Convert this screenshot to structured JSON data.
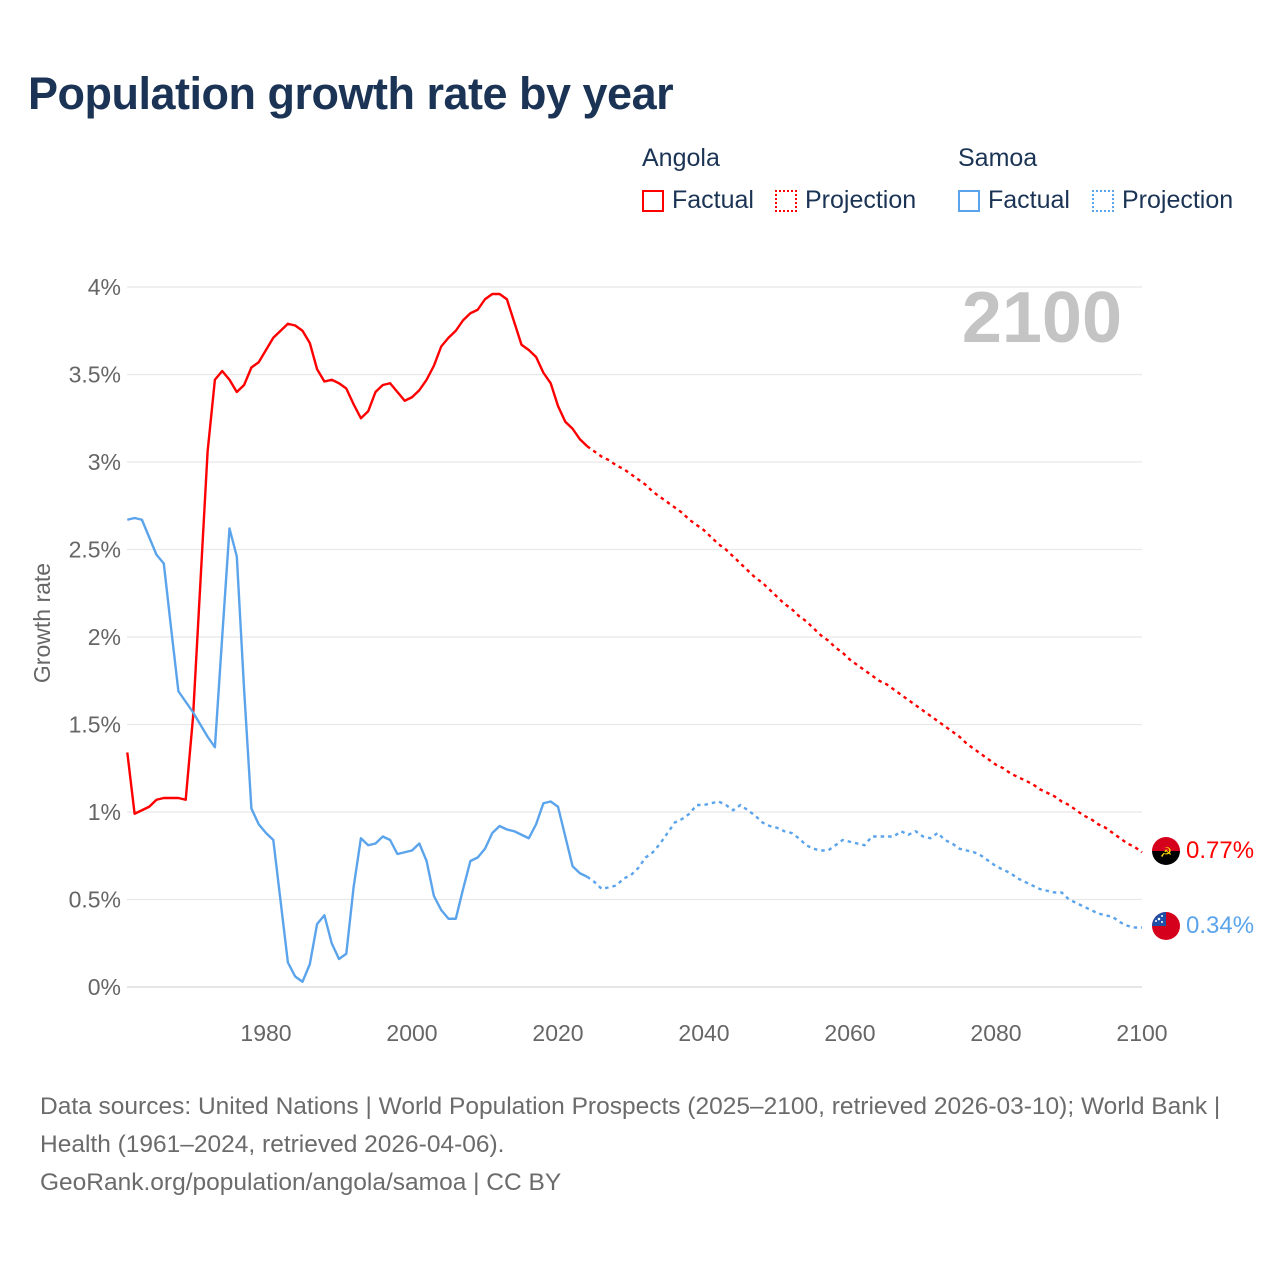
{
  "title": "Population growth rate by year",
  "legend": {
    "groups": [
      {
        "name": "Angola",
        "color": "#ff0000",
        "factual": "Factual",
        "projection": "Projection"
      },
      {
        "name": "Samoa",
        "color": "#5ba4ec",
        "factual": "Factual",
        "projection": "Projection"
      }
    ]
  },
  "year_overlay": "2100",
  "end_labels": {
    "angola": "0.77%",
    "samoa": "0.34%"
  },
  "footer": {
    "sources": "Data sources: United Nations | World Population Prospects (2025–2100, retrieved 2026-03-10); World Bank | Health (1961–2024, retrieved 2026-04-06).",
    "credit": "GeoRank.org/population/angola/samoa | CC BY"
  },
  "chart_data": {
    "type": "line",
    "title": "Population growth rate by year",
    "xlabel": "",
    "ylabel": "Growth rate",
    "xlim": [
      1961,
      2100
    ],
    "ylim": [
      0,
      4
    ],
    "x_ticks": [
      1980,
      2000,
      2020,
      2040,
      2060,
      2080,
      2100
    ],
    "x_tick_labels": [
      "1980",
      "2000",
      "2020",
      "2040",
      "2060",
      "2080",
      "2100"
    ],
    "y_ticks": [
      0,
      0.5,
      1,
      1.5,
      2,
      2.5,
      3,
      3.5,
      4
    ],
    "y_tick_labels": [
      "0%",
      "0.5%",
      "1%",
      "1.5%",
      "2%",
      "2.5%",
      "3%",
      "3.5%",
      "4%"
    ],
    "grid": true,
    "legend_position": "top-right",
    "series": [
      {
        "name": "Angola Factual",
        "country": "Angola",
        "style": "solid",
        "color": "#ff0000",
        "x_start": 1961,
        "values": [
          1.34,
          0.99,
          1.01,
          1.03,
          1.07,
          1.08,
          1.08,
          1.08,
          1.07,
          1.54,
          2.3,
          3.06,
          3.47,
          3.52,
          3.47,
          3.4,
          3.44,
          3.54,
          3.57,
          3.64,
          3.71,
          3.75,
          3.79,
          3.78,
          3.75,
          3.68,
          3.53,
          3.46,
          3.47,
          3.45,
          3.42,
          3.33,
          3.25,
          3.29,
          3.4,
          3.44,
          3.45,
          3.4,
          3.35,
          3.37,
          3.41,
          3.47,
          3.55,
          3.66,
          3.71,
          3.75,
          3.81,
          3.85,
          3.87,
          3.93,
          3.96,
          3.96,
          3.93,
          3.8,
          3.67,
          3.64,
          3.6,
          3.51,
          3.45,
          3.32,
          3.23,
          3.19,
          3.13,
          3.09
        ]
      },
      {
        "name": "Angola Projection",
        "country": "Angola",
        "style": "dotted",
        "color": "#ff0000",
        "x_start": 2025,
        "values": [
          3.06,
          3.03,
          3.01,
          2.98,
          2.96,
          2.93,
          2.9,
          2.87,
          2.83,
          2.8,
          2.77,
          2.74,
          2.71,
          2.67,
          2.64,
          2.61,
          2.57,
          2.53,
          2.5,
          2.46,
          2.42,
          2.38,
          2.34,
          2.31,
          2.27,
          2.23,
          2.19,
          2.16,
          2.12,
          2.09,
          2.05,
          2.01,
          1.98,
          1.94,
          1.91,
          1.87,
          1.84,
          1.81,
          1.78,
          1.75,
          1.73,
          1.7,
          1.67,
          1.64,
          1.61,
          1.58,
          1.55,
          1.52,
          1.49,
          1.46,
          1.43,
          1.39,
          1.36,
          1.33,
          1.3,
          1.27,
          1.25,
          1.22,
          1.2,
          1.18,
          1.16,
          1.13,
          1.11,
          1.09,
          1.06,
          1.04,
          1.01,
          0.98,
          0.96,
          0.93,
          0.91,
          0.88,
          0.85,
          0.82,
          0.8,
          0.77
        ]
      },
      {
        "name": "Samoa Factual",
        "country": "Samoa",
        "style": "solid",
        "color": "#5ba4ec",
        "x_start": 1961,
        "values": [
          2.67,
          2.68,
          2.67,
          2.57,
          2.47,
          2.42,
          2.05,
          1.69,
          1.63,
          1.57,
          1.5,
          1.43,
          1.37,
          2.0,
          2.62,
          2.46,
          1.7,
          1.02,
          0.93,
          0.88,
          0.84,
          0.49,
          0.14,
          0.06,
          0.03,
          0.13,
          0.36,
          0.41,
          0.25,
          0.16,
          0.19,
          0.57,
          0.85,
          0.81,
          0.82,
          0.86,
          0.84,
          0.76,
          0.77,
          0.78,
          0.82,
          0.72,
          0.52,
          0.44,
          0.39,
          0.39,
          0.56,
          0.72,
          0.74,
          0.79,
          0.88,
          0.92,
          0.9,
          0.89,
          0.87,
          0.85,
          0.93,
          1.05,
          1.06,
          1.03,
          0.86,
          0.69,
          0.65,
          0.63
        ]
      },
      {
        "name": "Samoa Projection",
        "country": "Samoa",
        "style": "dotted",
        "color": "#5ba4ec",
        "x_start": 2025,
        "values": [
          0.6,
          0.56,
          0.57,
          0.58,
          0.62,
          0.64,
          0.68,
          0.74,
          0.77,
          0.82,
          0.88,
          0.94,
          0.96,
          0.99,
          1.04,
          1.04,
          1.05,
          1.06,
          1.04,
          1.01,
          1.04,
          1.01,
          0.98,
          0.94,
          0.92,
          0.91,
          0.89,
          0.88,
          0.85,
          0.81,
          0.79,
          0.78,
          0.78,
          0.81,
          0.84,
          0.83,
          0.82,
          0.81,
          0.86,
          0.86,
          0.86,
          0.86,
          0.89,
          0.87,
          0.89,
          0.86,
          0.85,
          0.88,
          0.84,
          0.82,
          0.79,
          0.78,
          0.77,
          0.75,
          0.72,
          0.69,
          0.67,
          0.65,
          0.62,
          0.6,
          0.58,
          0.56,
          0.55,
          0.54,
          0.54,
          0.5,
          0.48,
          0.46,
          0.44,
          0.42,
          0.41,
          0.4,
          0.37,
          0.35,
          0.34,
          0.34
        ]
      }
    ]
  }
}
